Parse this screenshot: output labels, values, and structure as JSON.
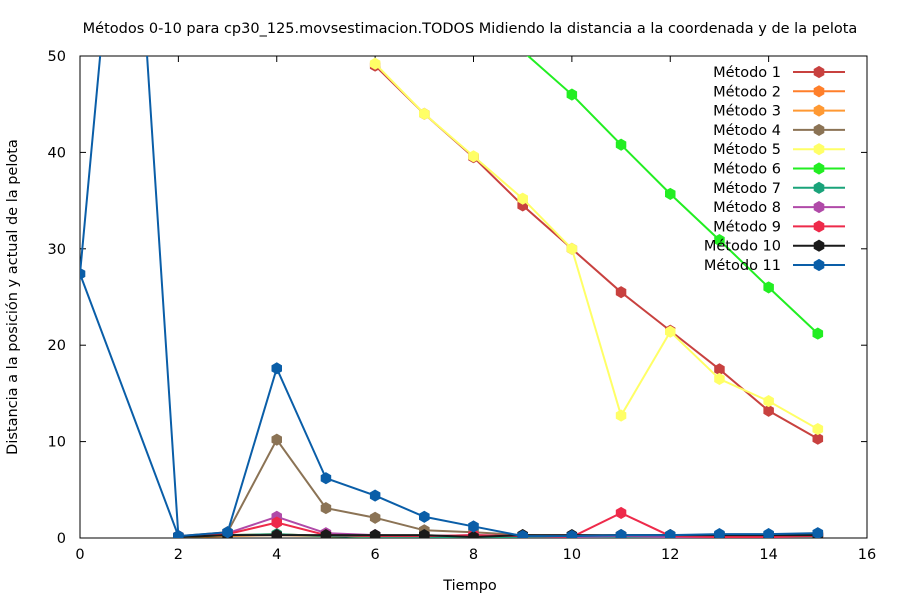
{
  "chart_data": {
    "type": "line",
    "title": "Métodos 0-10 para cp30_125.movsestimacion.TODOS Midiendo la distancia a la coordenada y de la pelota",
    "xlabel": "Tiempo",
    "ylabel": "Distancia a la posición y actual de la pelota",
    "xlim": [
      0,
      16
    ],
    "ylim": [
      0,
      50
    ],
    "xticks": [
      0,
      2,
      4,
      6,
      8,
      10,
      12,
      14,
      16
    ],
    "yticks": [
      0,
      10,
      20,
      30,
      40,
      50
    ],
    "grid": false,
    "legend_position": "top-right",
    "series": [
      {
        "name": "Método 1",
        "color": "#c8413f",
        "x": [
          6,
          7,
          8,
          9,
          10,
          11,
          12,
          13,
          14,
          15
        ],
        "y": [
          49,
          44,
          39.5,
          34.5,
          30,
          25.5,
          21.5,
          17.5,
          13.2,
          10.3
        ]
      },
      {
        "name": "Método 2",
        "color": "#ff7f2a",
        "x": [
          2,
          3,
          4,
          5,
          6,
          7,
          8,
          9,
          10,
          11,
          12,
          13,
          14,
          15
        ],
        "y": [
          0.2,
          0.3,
          0.4,
          0.2,
          0.1,
          0.2,
          0.1,
          0.1,
          0.1,
          0.2,
          0.1,
          0.1,
          0.1,
          0.2
        ]
      },
      {
        "name": "Método 3",
        "color": "#ff9933",
        "x": [
          2,
          3,
          4,
          5,
          6,
          7,
          8,
          9,
          10,
          11,
          12,
          13,
          14,
          15
        ],
        "y": [
          0.1,
          0.2,
          0.3,
          0.2,
          0.1,
          0.1,
          0.2,
          0.1,
          0.1,
          0.1,
          0.1,
          0.1,
          0.2,
          0.1
        ]
      },
      {
        "name": "Método 4",
        "color": "#8b7355",
        "x": [
          2,
          3,
          4,
          5,
          6,
          7,
          8,
          9,
          10,
          11,
          12,
          13,
          14,
          15
        ],
        "y": [
          0.2,
          0.6,
          10.2,
          3.1,
          2.1,
          0.8,
          0.6,
          0.3,
          0.2,
          0.3,
          0.3,
          0.3,
          0.3,
          0.4
        ]
      },
      {
        "name": "Método 5",
        "color": "#ffff66",
        "x": [
          6,
          7,
          8,
          9,
          10,
          11,
          12,
          13,
          14,
          15
        ],
        "y": [
          49.2,
          44,
          39.6,
          35.2,
          30,
          12.7,
          21.4,
          16.5,
          14.2,
          11.3
        ]
      },
      {
        "name": "Método 6",
        "color": "#22ee22",
        "x": [
          9,
          10,
          11,
          12,
          13,
          14,
          15
        ],
        "y": [
          50.5,
          46,
          40.8,
          35.7,
          30.9,
          26,
          21.2
        ]
      },
      {
        "name": "Método 7",
        "color": "#1aa37a",
        "x": [
          2,
          3,
          4,
          5,
          6,
          7,
          8,
          9,
          10,
          11,
          12,
          13,
          14,
          15
        ],
        "y": [
          0.1,
          0.3,
          0.4,
          0.2,
          0.1,
          0.1,
          0.1,
          0.1,
          0.1,
          0.1,
          0.1,
          0.1,
          0.1,
          0.1
        ]
      },
      {
        "name": "Método 8",
        "color": "#b04aa8",
        "x": [
          2,
          3,
          4,
          5,
          6,
          7,
          8,
          9,
          10,
          11,
          12,
          13,
          14,
          15
        ],
        "y": [
          0.2,
          0.5,
          2.2,
          0.5,
          0.3,
          0.2,
          0.3,
          0.2,
          0.1,
          0.2,
          0.1,
          0.1,
          0.1,
          0.2
        ]
      },
      {
        "name": "Método 9",
        "color": "#ee2a4a",
        "x": [
          2,
          3,
          4,
          5,
          6,
          7,
          8,
          9,
          10,
          11,
          12,
          13,
          14,
          15
        ],
        "y": [
          0.1,
          0.4,
          1.6,
          0.3,
          0.2,
          0.2,
          0.3,
          0.2,
          0.1,
          2.6,
          0.2,
          0.1,
          0.1,
          0.2
        ]
      },
      {
        "name": "Método 10",
        "color": "#1a1a1a",
        "x": [
          2,
          3,
          4,
          5,
          6,
          7,
          8,
          9,
          10,
          11,
          12,
          13,
          14,
          15
        ],
        "y": [
          0.1,
          0.3,
          0.3,
          0.3,
          0.3,
          0.3,
          0.1,
          0.3,
          0.3,
          0.3,
          0.3,
          0.3,
          0.3,
          0.3
        ]
      },
      {
        "name": "Método 11",
        "color": "#0a5ea8",
        "x": [
          0,
          2,
          3,
          4,
          5,
          6,
          7,
          8,
          9,
          10,
          11,
          12,
          13,
          14,
          15
        ],
        "y": [
          27.4,
          0.2,
          0.6,
          17.6,
          6.2,
          4.4,
          2.2,
          1.2,
          0.2,
          0.2,
          0.3,
          0.3,
          0.4,
          0.4,
          0.5
        ],
        "offchart_segment": {
          "x": [
            0,
            0.5,
            1.3,
            2
          ],
          "y": [
            27.4,
            55,
            55,
            0.2
          ]
        }
      }
    ]
  }
}
